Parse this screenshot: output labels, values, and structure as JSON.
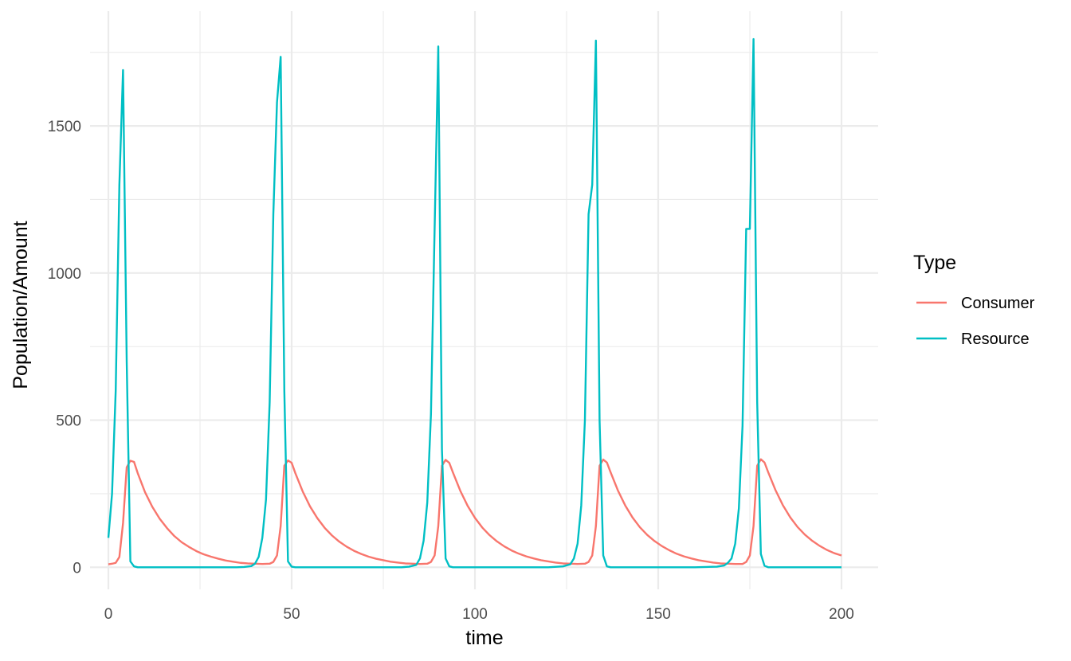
{
  "chart_data": {
    "type": "line",
    "title": "",
    "xlabel": "time",
    "ylabel": "Population/Amount",
    "xlim": [
      -5,
      210
    ],
    "ylim": [
      -75,
      1890
    ],
    "x_ticks": [
      0,
      50,
      100,
      150,
      200
    ],
    "x_tick_labels": [
      "0",
      "50",
      "100",
      "150",
      "200"
    ],
    "y_ticks": [
      0,
      500,
      1000,
      1500
    ],
    "y_tick_labels": [
      "0",
      "500",
      "1000",
      "1500"
    ],
    "grid": true,
    "legend": {
      "title": "Type",
      "placement": "right",
      "entries": [
        "Consumer",
        "Resource"
      ]
    },
    "series": [
      {
        "name": "Consumer",
        "color": "#F8766D",
        "points": [
          [
            0,
            10
          ],
          [
            1,
            12
          ],
          [
            2,
            15
          ],
          [
            3,
            35
          ],
          [
            4,
            150
          ],
          [
            5,
            340
          ],
          [
            6,
            362
          ],
          [
            7,
            358
          ],
          [
            8,
            320
          ],
          [
            10,
            255
          ],
          [
            12,
            205
          ],
          [
            14,
            165
          ],
          [
            16,
            133
          ],
          [
            18,
            106
          ],
          [
            20,
            85
          ],
          [
            22,
            69
          ],
          [
            24,
            55
          ],
          [
            26,
            44
          ],
          [
            28,
            36
          ],
          [
            30,
            29
          ],
          [
            32,
            23
          ],
          [
            34,
            19
          ],
          [
            36,
            15
          ],
          [
            38,
            13
          ],
          [
            40,
            12
          ],
          [
            42,
            11
          ],
          [
            44,
            12
          ],
          [
            45,
            18
          ],
          [
            46,
            40
          ],
          [
            47,
            140
          ],
          [
            48,
            345
          ],
          [
            49,
            363
          ],
          [
            50,
            355
          ],
          [
            51,
            320
          ],
          [
            53,
            258
          ],
          [
            55,
            207
          ],
          [
            57,
            167
          ],
          [
            59,
            134
          ],
          [
            61,
            108
          ],
          [
            63,
            87
          ],
          [
            65,
            70
          ],
          [
            67,
            56
          ],
          [
            69,
            45
          ],
          [
            71,
            36
          ],
          [
            73,
            29
          ],
          [
            75,
            24
          ],
          [
            77,
            19
          ],
          [
            79,
            16
          ],
          [
            81,
            13
          ],
          [
            83,
            12
          ],
          [
            85,
            11
          ],
          [
            87,
            12
          ],
          [
            88,
            18
          ],
          [
            89,
            40
          ],
          [
            90,
            140
          ],
          [
            91,
            345
          ],
          [
            92,
            365
          ],
          [
            93,
            355
          ],
          [
            94,
            322
          ],
          [
            96,
            260
          ],
          [
            98,
            209
          ],
          [
            100,
            168
          ],
          [
            102,
            135
          ],
          [
            104,
            109
          ],
          [
            106,
            88
          ],
          [
            108,
            71
          ],
          [
            110,
            57
          ],
          [
            112,
            46
          ],
          [
            114,
            37
          ],
          [
            116,
            30
          ],
          [
            118,
            24
          ],
          [
            120,
            20
          ],
          [
            122,
            16
          ],
          [
            124,
            13
          ],
          [
            126,
            12
          ],
          [
            128,
            11
          ],
          [
            130,
            12
          ],
          [
            131,
            18
          ],
          [
            132,
            40
          ],
          [
            133,
            140
          ],
          [
            134,
            345
          ],
          [
            135,
            366
          ],
          [
            136,
            356
          ],
          [
            137,
            323
          ],
          [
            139,
            261
          ],
          [
            141,
            210
          ],
          [
            143,
            169
          ],
          [
            145,
            136
          ],
          [
            147,
            110
          ],
          [
            149,
            89
          ],
          [
            151,
            72
          ],
          [
            153,
            58
          ],
          [
            155,
            46
          ],
          [
            157,
            37
          ],
          [
            159,
            30
          ],
          [
            161,
            24
          ],
          [
            163,
            20
          ],
          [
            165,
            16
          ],
          [
            167,
            13
          ],
          [
            169,
            12
          ],
          [
            171,
            11
          ],
          [
            173,
            11
          ],
          [
            174,
            18
          ],
          [
            175,
            40
          ],
          [
            176,
            140
          ],
          [
            177,
            345
          ],
          [
            178,
            367
          ],
          [
            179,
            356
          ],
          [
            180,
            323
          ],
          [
            182,
            262
          ],
          [
            184,
            211
          ],
          [
            186,
            170
          ],
          [
            188,
            137
          ],
          [
            190,
            111
          ],
          [
            192,
            90
          ],
          [
            194,
            73
          ],
          [
            196,
            59
          ],
          [
            198,
            48
          ],
          [
            200,
            40
          ]
        ]
      },
      {
        "name": "Resource",
        "color": "#00BFC4",
        "points": [
          [
            0,
            100
          ],
          [
            1,
            250
          ],
          [
            2,
            600
          ],
          [
            3,
            1300
          ],
          [
            4,
            1690
          ],
          [
            5,
            700
          ],
          [
            6,
            20
          ],
          [
            7,
            3
          ],
          [
            8,
            0
          ],
          [
            10,
            0
          ],
          [
            20,
            0
          ],
          [
            30,
            0
          ],
          [
            35,
            0
          ],
          [
            37,
            1
          ],
          [
            39,
            4
          ],
          [
            40,
            12
          ],
          [
            41,
            35
          ],
          [
            42,
            100
          ],
          [
            43,
            230
          ],
          [
            44,
            560
          ],
          [
            45,
            1200
          ],
          [
            46,
            1580
          ],
          [
            47,
            1735
          ],
          [
            48,
            600
          ],
          [
            49,
            20
          ],
          [
            50,
            2
          ],
          [
            51,
            0
          ],
          [
            60,
            0
          ],
          [
            70,
            0
          ],
          [
            80,
            0
          ],
          [
            82,
            2
          ],
          [
            84,
            8
          ],
          [
            85,
            30
          ],
          [
            86,
            90
          ],
          [
            87,
            220
          ],
          [
            88,
            520
          ],
          [
            89,
            1150
          ],
          [
            90,
            1770
          ],
          [
            91,
            400
          ],
          [
            92,
            30
          ],
          [
            93,
            3
          ],
          [
            94,
            0
          ],
          [
            100,
            0
          ],
          [
            110,
            0
          ],
          [
            120,
            0
          ],
          [
            124,
            3
          ],
          [
            126,
            10
          ],
          [
            127,
            30
          ],
          [
            128,
            80
          ],
          [
            129,
            210
          ],
          [
            130,
            500
          ],
          [
            131,
            1200
          ],
          [
            132,
            1300
          ],
          [
            133,
            1790
          ],
          [
            134,
            500
          ],
          [
            135,
            40
          ],
          [
            136,
            3
          ],
          [
            137,
            0
          ],
          [
            150,
            0
          ],
          [
            160,
            0
          ],
          [
            166,
            2
          ],
          [
            168,
            6
          ],
          [
            169,
            15
          ],
          [
            170,
            30
          ],
          [
            171,
            80
          ],
          [
            172,
            200
          ],
          [
            173,
            480
          ],
          [
            174,
            1150
          ],
          [
            175,
            1150
          ],
          [
            176,
            1795
          ],
          [
            177,
            560
          ],
          [
            178,
            45
          ],
          [
            179,
            5
          ],
          [
            180,
            0
          ],
          [
            190,
            0
          ],
          [
            200,
            0
          ]
        ]
      }
    ]
  }
}
